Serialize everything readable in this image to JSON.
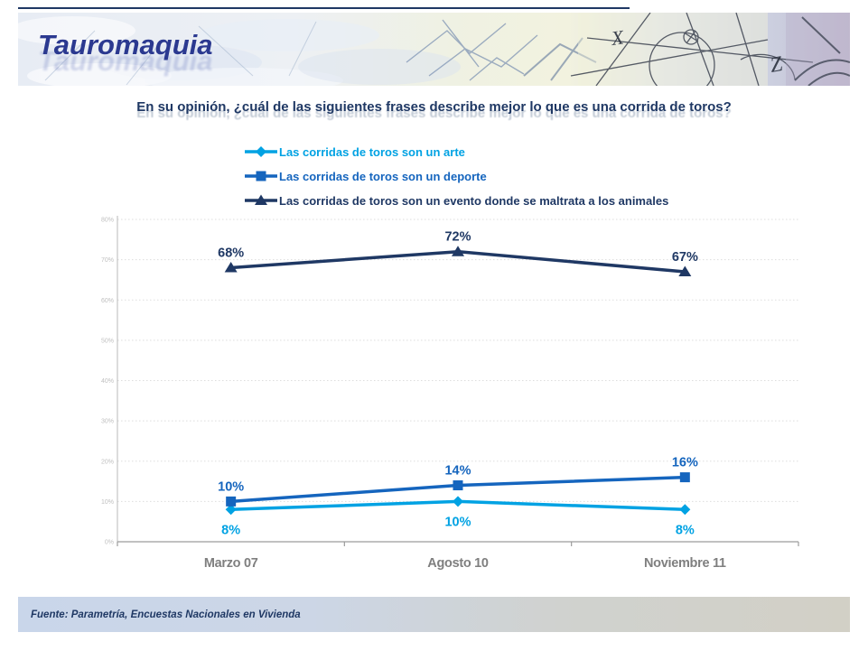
{
  "header": {
    "title": "Tauromaquia"
  },
  "question": {
    "text": "En su opinión, ¿cuál de las siguientes frases describe mejor lo que es una corrida de toros?"
  },
  "footer": {
    "text": "Fuente: Parametría, Encuestas Nacionales en Vivienda"
  },
  "colors": {
    "navy": "#1f3864",
    "blue": "#1565be",
    "cyan": "#00a2e3",
    "title_navy": "#2b3990",
    "ytick_gray": "#bfbfbf",
    "xlabel_gray": "#7f7f7f",
    "grid_gray": "#dddddd",
    "axis_gray": "#9c9c9c"
  },
  "chart_data": {
    "type": "line",
    "title": "En su opinión, ¿cuál de las siguientes frases describe mejor lo que es una corrida de toros?",
    "categories": [
      "Marzo 07",
      "Agosto 10",
      "Noviembre 11"
    ],
    "series": [
      {
        "name": "Las corridas de toros son un arte",
        "color": "#00a2e3",
        "marker": "diamond",
        "label_position": "below",
        "values": [
          8,
          10,
          8
        ]
      },
      {
        "name": "Las corridas de toros son un deporte",
        "color": "#1565be",
        "marker": "square",
        "label_position": "above",
        "values": [
          10,
          14,
          16
        ]
      },
      {
        "name": "Las corridas de toros son un evento donde se maltrata a los animales",
        "color": "#1f3864",
        "marker": "triangle",
        "label_position": "above",
        "values": [
          68,
          72,
          67
        ]
      }
    ],
    "ylim": [
      0,
      80
    ],
    "ytick_step": 10,
    "ytick_labels": [
      "0%",
      "10%",
      "20%",
      "30%",
      "40%",
      "50%",
      "60%",
      "70%",
      "80%"
    ],
    "value_suffix": "%",
    "grid": true,
    "legend_position": "top-left",
    "xlabel": "",
    "ylabel": ""
  }
}
